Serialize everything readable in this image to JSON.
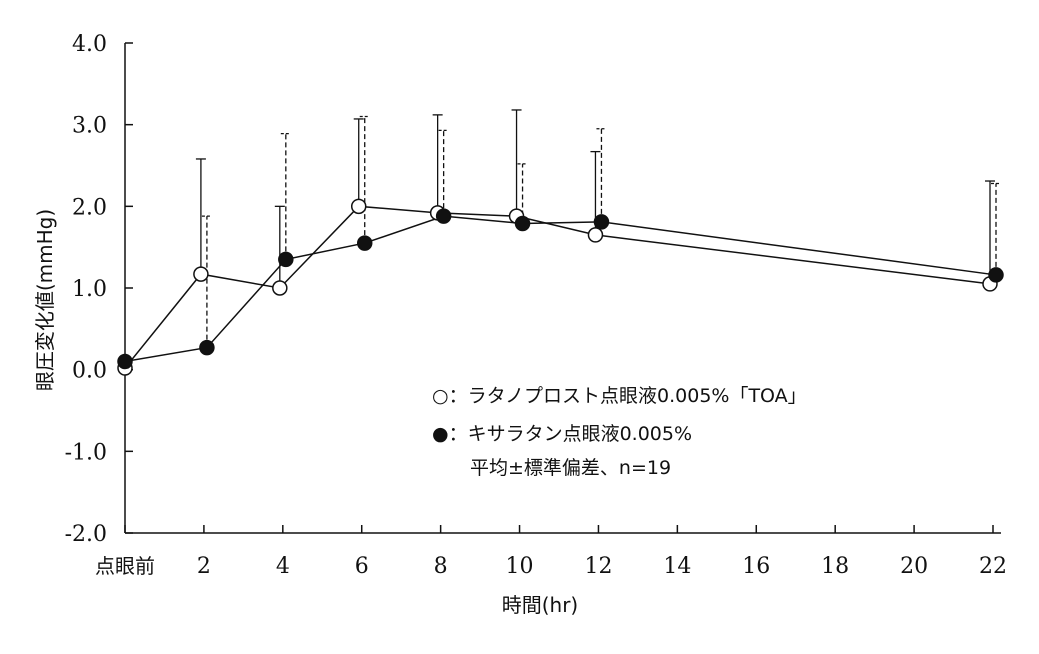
{
  "chart_data": {
    "type": "line",
    "title": "",
    "xlabel": "時間(hr)",
    "ylabel": "眼圧変化値(mmHg)",
    "ylim": [
      -2.0,
      4.0
    ],
    "yticks": [
      "-2.0",
      "-1.0",
      "0.0",
      "1.0",
      "2.0",
      "3.0",
      "4.0"
    ],
    "xlim": [
      0,
      22
    ],
    "xticks": [
      {
        "v": 0,
        "label": "点眼前"
      },
      {
        "v": 2,
        "label": "2"
      },
      {
        "v": 4,
        "label": "4"
      },
      {
        "v": 6,
        "label": "6"
      },
      {
        "v": 8,
        "label": "8"
      },
      {
        "v": 10,
        "label": "10"
      },
      {
        "v": 12,
        "label": "12"
      },
      {
        "v": 14,
        "label": "14"
      },
      {
        "v": 16,
        "label": "16"
      },
      {
        "v": 18,
        "label": "18"
      },
      {
        "v": 20,
        "label": "20"
      },
      {
        "v": 22,
        "label": "22"
      }
    ],
    "x": [
      0,
      2,
      4,
      6,
      8,
      10,
      12,
      22
    ],
    "series": [
      {
        "name": "ラタノプロスト点眼液0.005%「TOA」",
        "marker": "open-circle",
        "errorbar": "solid",
        "values": [
          0.02,
          1.17,
          1.0,
          2.0,
          1.92,
          1.88,
          1.65,
          1.05
        ],
        "upper": [
          null,
          2.58,
          2.0,
          3.07,
          3.12,
          3.18,
          2.67,
          2.31
        ]
      },
      {
        "name": "キサラタン点眼液0.005%",
        "marker": "filled-circle",
        "errorbar": "dashed",
        "values": [
          0.1,
          0.27,
          1.35,
          1.55,
          1.88,
          1.79,
          1.81,
          1.16
        ],
        "upper": [
          null,
          1.88,
          2.89,
          3.1,
          2.93,
          2.52,
          2.95,
          2.28
        ]
      }
    ],
    "legend": {
      "position": "center-right",
      "entries": [
        "○：ラタノプロスト点眼液0.005%「TOA」",
        "●：キサラタン点眼液0.005%"
      ],
      "note": "平均±標準偏差、n=19"
    },
    "grid": false
  }
}
